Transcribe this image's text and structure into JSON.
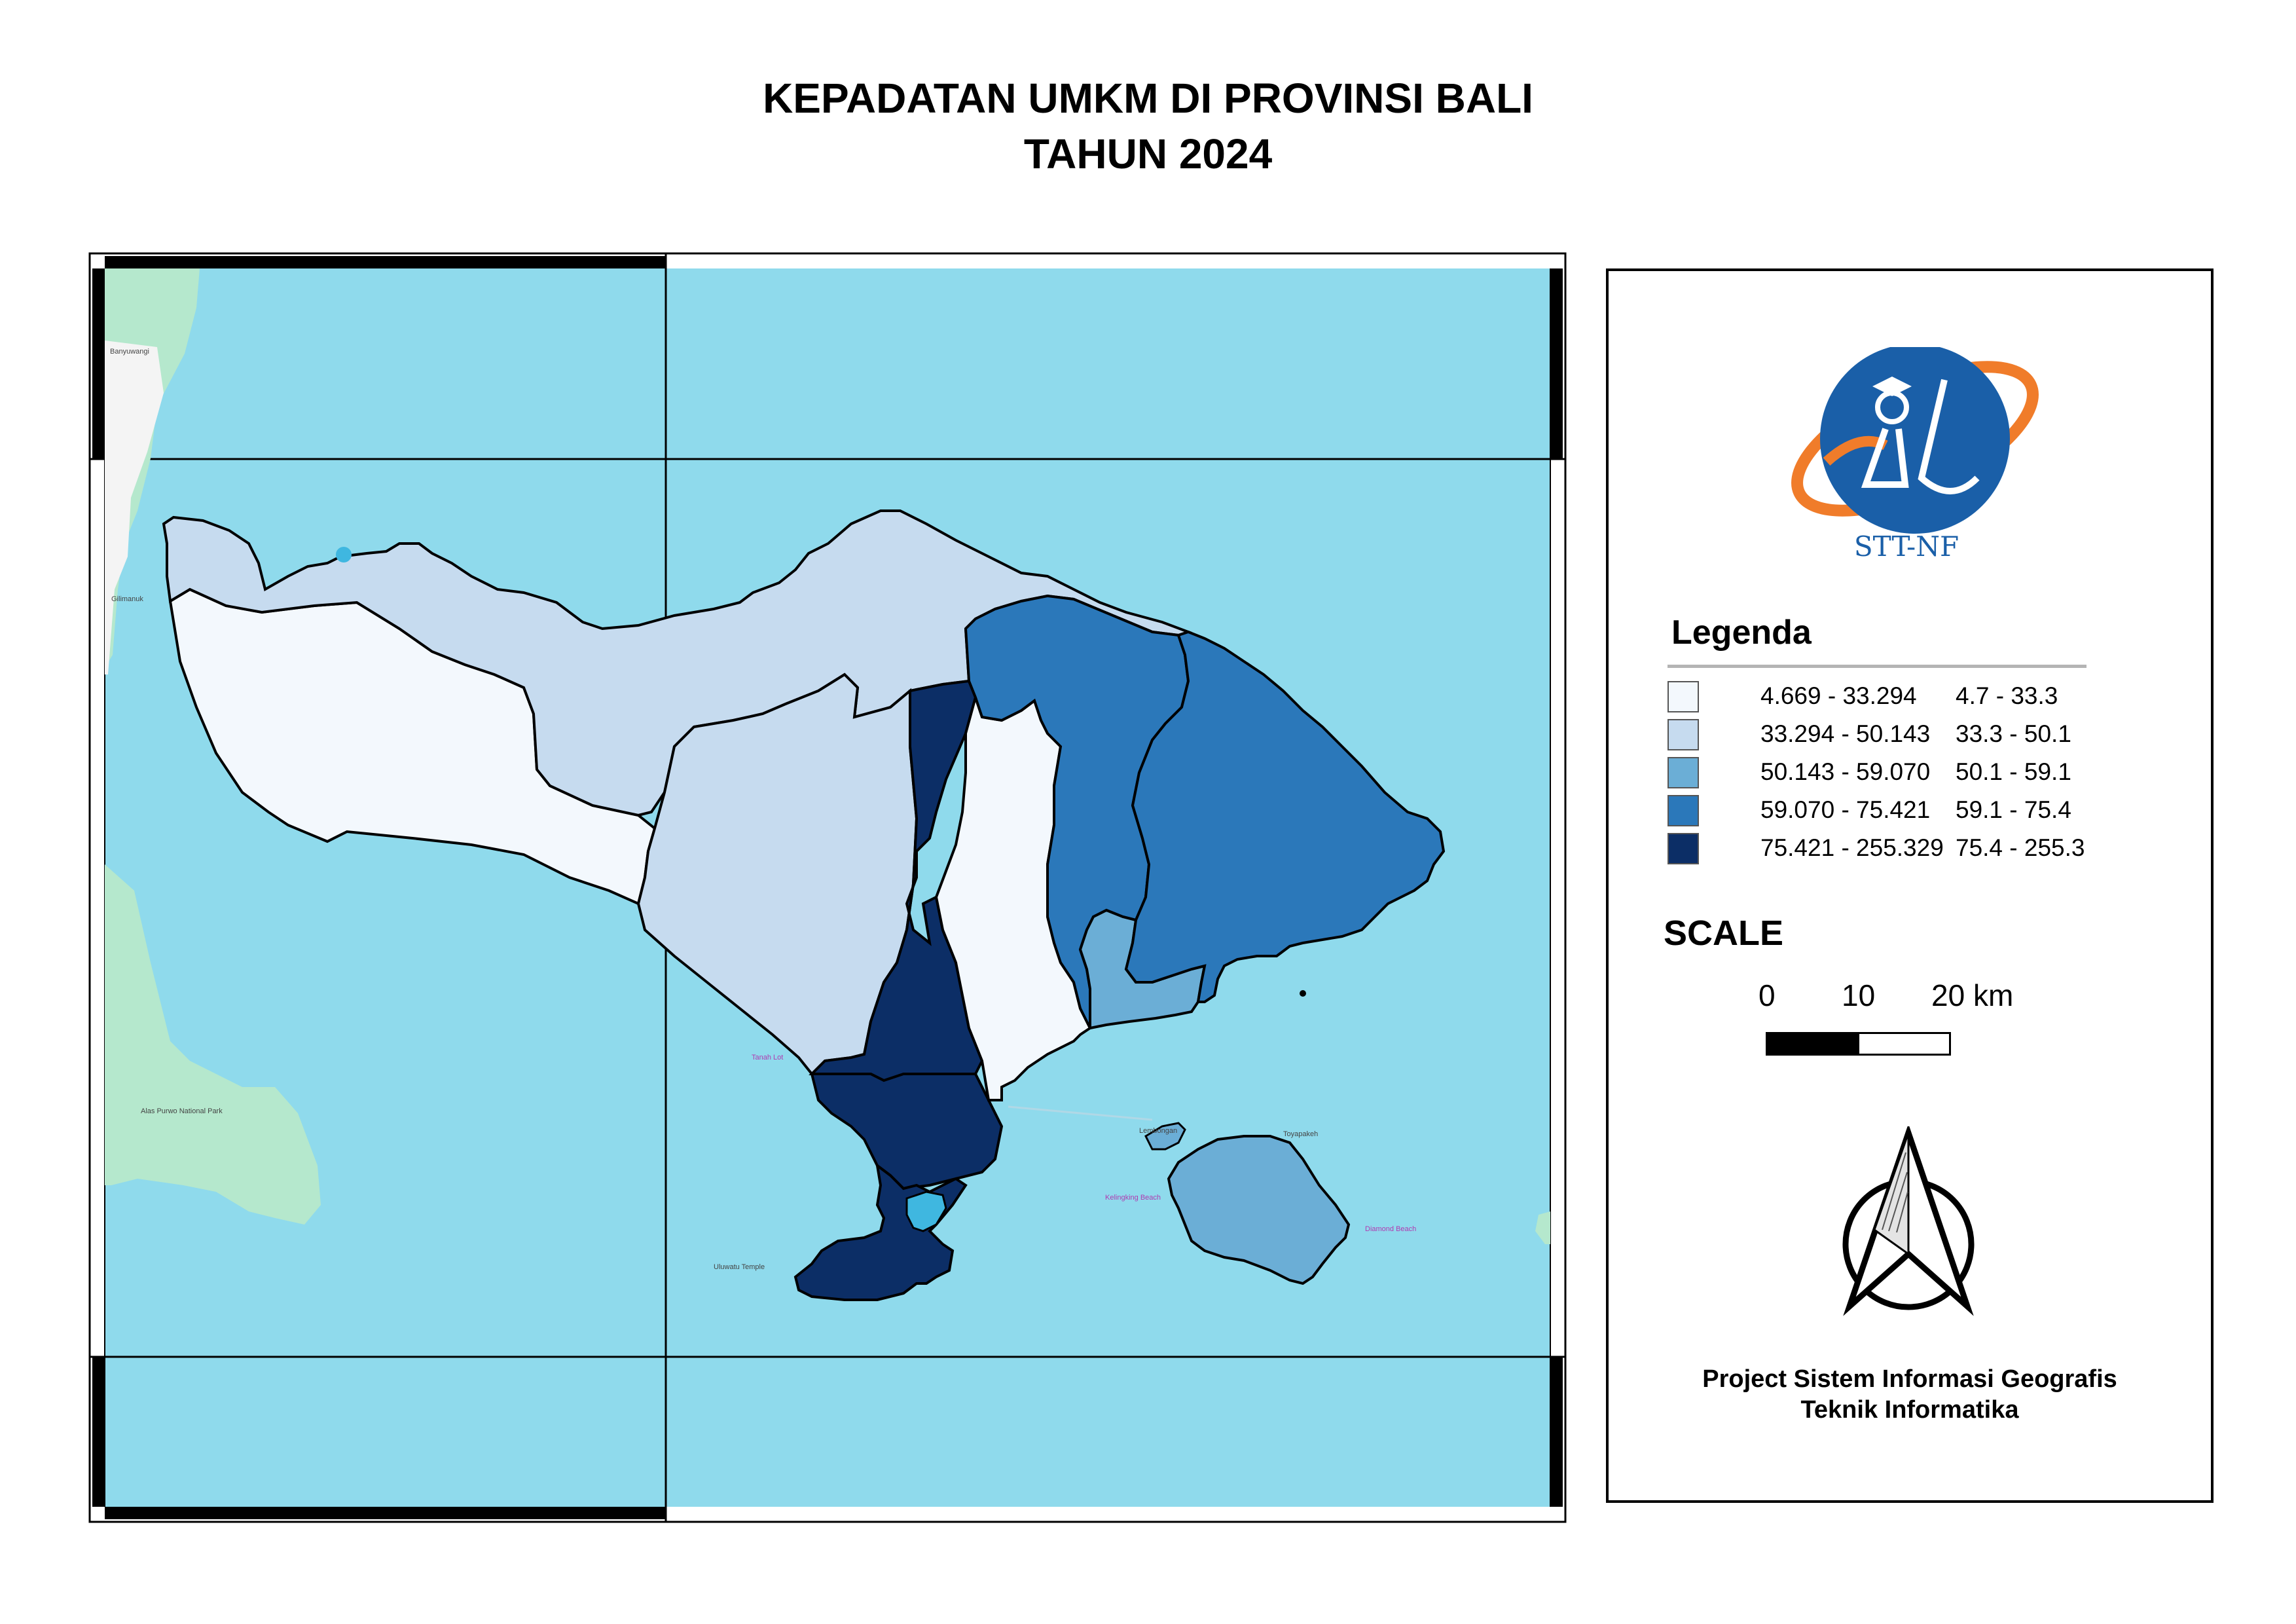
{
  "title": {
    "line1": "KEPADATAN UMKM DI PROVINSI BALI",
    "line2": "TAHUN 2024"
  },
  "colors": {
    "sea": "#8fdaec",
    "land_java_lombok": "#b5e8cd",
    "class1": "#f3f8fd",
    "class2": "#c6dbef",
    "class3": "#6baed6",
    "class4": "#2b78ba",
    "class5": "#0c2e66",
    "logo_blue": "#1a5fa8",
    "logo_orange": "#f07c2a"
  },
  "logo": {
    "text": "STT-NF"
  },
  "legend": {
    "title": "Legenda",
    "items": [
      {
        "range": "4.669 - 33.294",
        "label": "4.7 - 33.3",
        "color": "#f3f8fd"
      },
      {
        "range": "33.294 - 50.143",
        "label": "33.3 - 50.1",
        "color": "#c6dbef"
      },
      {
        "range": "50.143 - 59.070",
        "label": "50.1 - 59.1",
        "color": "#6baed6"
      },
      {
        "range": "59.070 - 75.421",
        "label": "59.1 - 75.4",
        "color": "#2b78ba"
      },
      {
        "range": "75.421 - 255.329",
        "label": "75.4 - 255.3",
        "color": "#0c2e66"
      }
    ]
  },
  "scale": {
    "title": "SCALE",
    "ticks": [
      "0",
      "10",
      "20 km"
    ]
  },
  "north_arrow": {
    "icon": "north-arrow-icon"
  },
  "credits": {
    "line1": "Project Sistem Informasi Geografis",
    "line2": "Teknik Informatika"
  },
  "map_labels": {
    "java_town1": "Banyuwangi",
    "java_town2": "Gilimanuk",
    "park": "Alas Purwo National Park",
    "tanah_lot": "Tanah Lot",
    "uluwatu": "Uluwatu Temple",
    "kelingking": "Kelingking Beach",
    "diamond": "Diamond Beach",
    "lembongan": "Lembongan",
    "nusa_penida_town": "Toyapakeh"
  }
}
